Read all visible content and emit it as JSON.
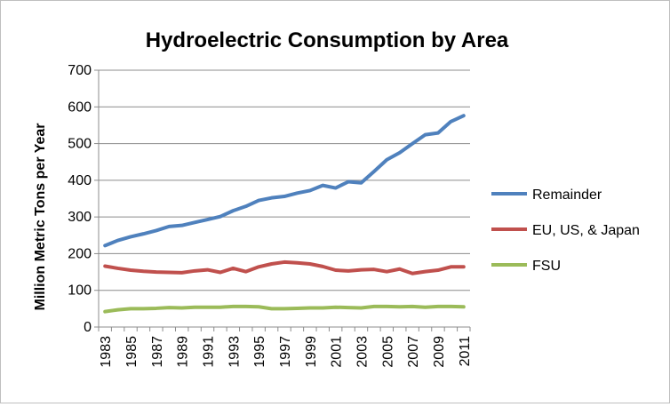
{
  "chart_data": {
    "type": "line",
    "title": "Hydroelectric Consumption by Area",
    "xlabel": "",
    "ylabel": "Million Metric Tons per Year",
    "ylim": [
      0,
      700
    ],
    "yticks": [
      0,
      100,
      200,
      300,
      400,
      500,
      600,
      700
    ],
    "ytick_labels": [
      "0",
      "100",
      "200",
      "300",
      "400",
      "500",
      "600",
      "700"
    ],
    "x": [
      1983,
      1984,
      1985,
      1986,
      1987,
      1988,
      1989,
      1990,
      1991,
      1992,
      1993,
      1994,
      1995,
      1996,
      1997,
      1998,
      1999,
      2000,
      2001,
      2002,
      2003,
      2004,
      2005,
      2006,
      2007,
      2008,
      2009,
      2010,
      2011
    ],
    "xtick_labels": [
      "1983",
      "1985",
      "1987",
      "1989",
      "1991",
      "1993",
      "1995",
      "1997",
      "1999",
      "2001",
      "2003",
      "2005",
      "2007",
      "2009",
      "2011"
    ],
    "grid": "horizontal",
    "legend_position": "right",
    "series": [
      {
        "name": "Remainder",
        "color": "#4f81bd",
        "values": [
          222,
          236,
          246,
          254,
          263,
          274,
          277,
          285,
          293,
          301,
          317,
          329,
          345,
          352,
          356,
          365,
          372,
          386,
          379,
          396,
          393,
          424,
          456,
          475,
          500,
          524,
          529,
          560,
          576
        ]
      },
      {
        "name": "EU, US, & Japan",
        "color": "#c0504d",
        "values": [
          166,
          160,
          155,
          152,
          150,
          149,
          148,
          153,
          156,
          149,
          160,
          151,
          164,
          172,
          177,
          175,
          172,
          165,
          155,
          153,
          156,
          157,
          151,
          158,
          146,
          151,
          155,
          164,
          164
        ]
      },
      {
        "name": "FSU",
        "color": "#9bbb59",
        "values": [
          42,
          47,
          50,
          50,
          51,
          53,
          52,
          54,
          54,
          54,
          56,
          56,
          55,
          50,
          50,
          51,
          52,
          52,
          54,
          53,
          52,
          56,
          56,
          55,
          56,
          54,
          56,
          56,
          55
        ]
      }
    ]
  }
}
